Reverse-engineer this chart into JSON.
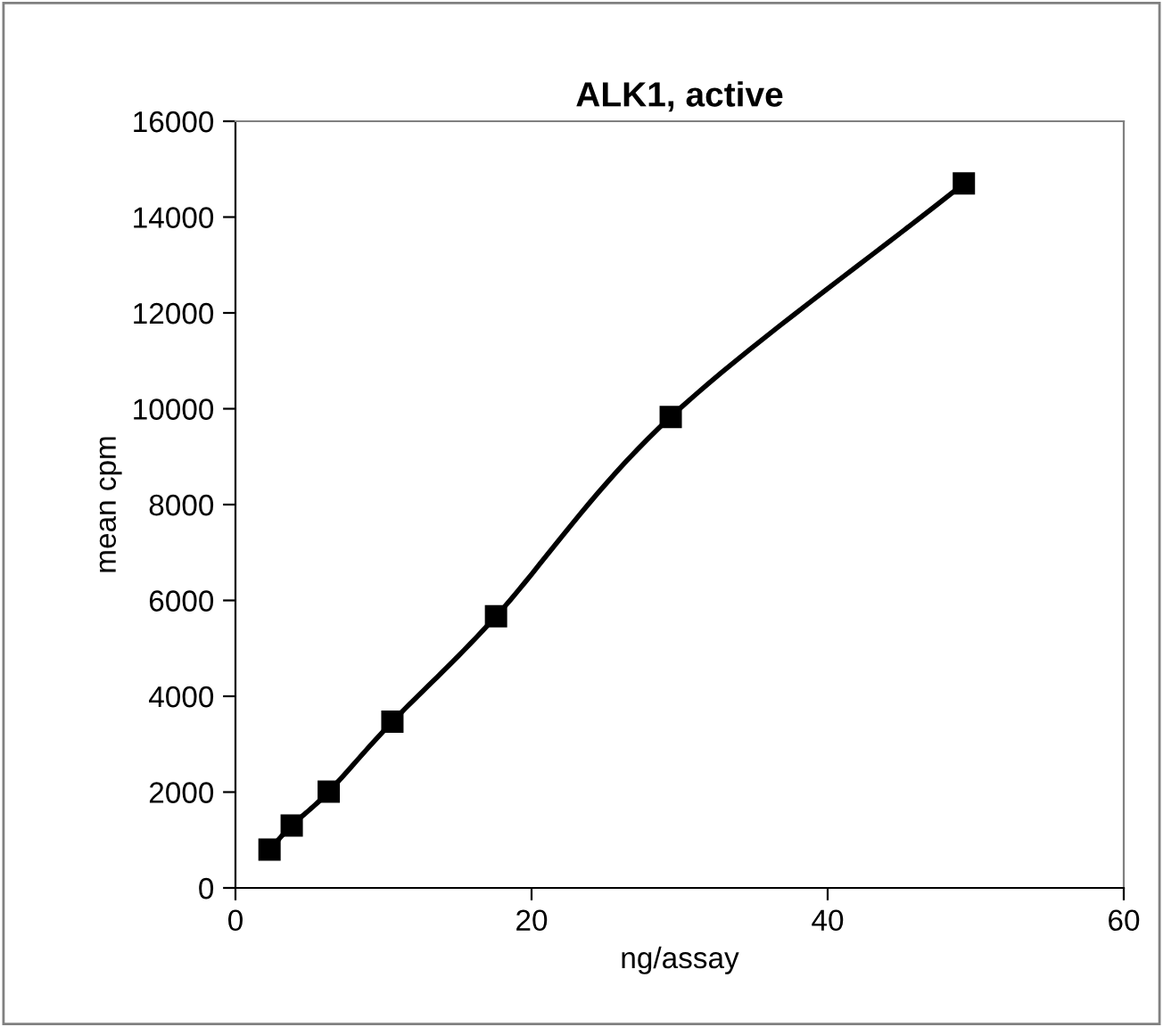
{
  "chart_data": {
    "type": "line",
    "title": "ALK1, active",
    "xlabel": "ng/assay",
    "ylabel": "mean cpm",
    "x": [
      2.3,
      3.8,
      6.3,
      10.6,
      17.6,
      29.4,
      49.2
    ],
    "series": [
      {
        "color": "#000000",
        "values": [
          800,
          1300,
          2010,
          3470,
          5670,
          9830,
          14700
        ]
      }
    ],
    "xlim": [
      0,
      60
    ],
    "xticks": [
      0,
      20,
      40,
      60
    ],
    "ylim": [
      0,
      16000
    ],
    "yticks": [
      0,
      2000,
      4000,
      6000,
      8000,
      10000,
      12000,
      14000,
      16000
    ],
    "marker": "square",
    "line_style": "solid",
    "grid": false,
    "legend": false
  }
}
